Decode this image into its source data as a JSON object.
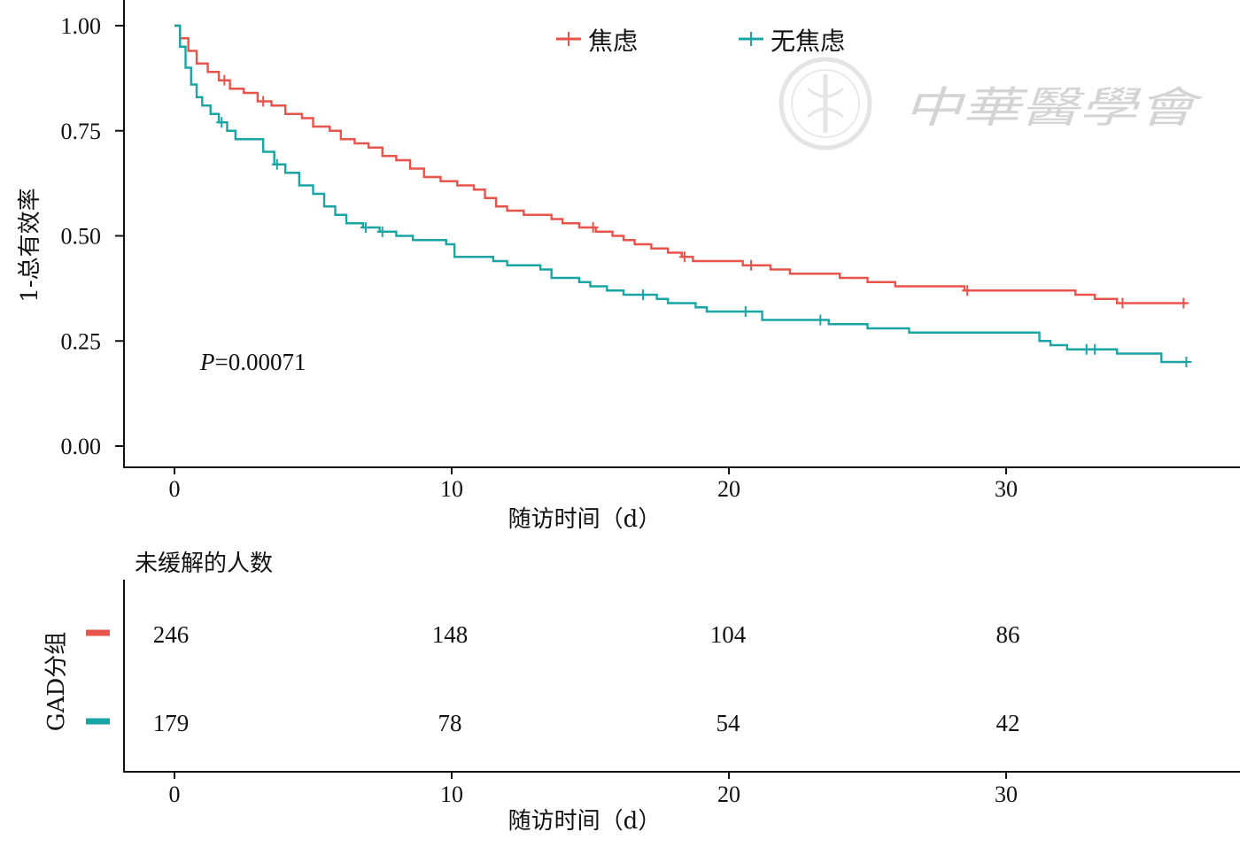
{
  "watermark": {
    "text": "中華醫學會"
  },
  "chart_data": [
    {
      "type": "line",
      "subtype": "kaplan-meier-step",
      "ylabel": "1-总有效率",
      "xlabel": "随访时间（d）",
      "xlim": [
        0,
        37
      ],
      "ylim": [
        0,
        1
      ],
      "x_ticks": [
        "0",
        "10",
        "20",
        "30"
      ],
      "y_ticks": [
        "0.00",
        "0.25",
        "0.50",
        "0.75",
        "1.00"
      ],
      "annotation": {
        "italic": "P",
        "rest": "=0.00071"
      },
      "legend": {
        "position": "top-center"
      },
      "series": [
        {
          "name": "焦虑",
          "color": "#e8534a",
          "points": [
            [
              0,
              1.0
            ],
            [
              0.2,
              0.97
            ],
            [
              0.5,
              0.94
            ],
            [
              0.8,
              0.91
            ],
            [
              1.2,
              0.89
            ],
            [
              1.6,
              0.87
            ],
            [
              2.0,
              0.85
            ],
            [
              2.5,
              0.84
            ],
            [
              3.0,
              0.82
            ],
            [
              3.5,
              0.81
            ],
            [
              4.0,
              0.79
            ],
            [
              4.6,
              0.78
            ],
            [
              5.0,
              0.76
            ],
            [
              5.6,
              0.75
            ],
            [
              6.0,
              0.73
            ],
            [
              6.5,
              0.72
            ],
            [
              7.0,
              0.71
            ],
            [
              7.5,
              0.69
            ],
            [
              8.0,
              0.68
            ],
            [
              8.5,
              0.66
            ],
            [
              9.0,
              0.64
            ],
            [
              9.6,
              0.63
            ],
            [
              10.2,
              0.62
            ],
            [
              10.8,
              0.61
            ],
            [
              11.2,
              0.59
            ],
            [
              11.6,
              0.57
            ],
            [
              12.0,
              0.56
            ],
            [
              12.6,
              0.55
            ],
            [
              13.2,
              0.55
            ],
            [
              13.6,
              0.54
            ],
            [
              14.0,
              0.53
            ],
            [
              14.6,
              0.52
            ],
            [
              15.2,
              0.51
            ],
            [
              15.8,
              0.5
            ],
            [
              16.2,
              0.49
            ],
            [
              16.6,
              0.48
            ],
            [
              17.2,
              0.47
            ],
            [
              17.8,
              0.46
            ],
            [
              18.3,
              0.45
            ],
            [
              18.7,
              0.44
            ],
            [
              19.2,
              0.44
            ],
            [
              20.0,
              0.44
            ],
            [
              20.5,
              0.43
            ],
            [
              21.0,
              0.43
            ],
            [
              21.5,
              0.42
            ],
            [
              22.2,
              0.41
            ],
            [
              23.0,
              0.41
            ],
            [
              24.0,
              0.4
            ],
            [
              25.0,
              0.39
            ],
            [
              26.0,
              0.38
            ],
            [
              27.0,
              0.38
            ],
            [
              28.5,
              0.37
            ],
            [
              30.0,
              0.37
            ],
            [
              31.5,
              0.37
            ],
            [
              32.5,
              0.36
            ],
            [
              33.2,
              0.35
            ],
            [
              34.0,
              0.34
            ],
            [
              35.5,
              0.34
            ],
            [
              36.5,
              0.34
            ]
          ],
          "censored_x": [
            1.8,
            3.2,
            15.1,
            18.4,
            20.8,
            28.6,
            34.2,
            36.4
          ]
        },
        {
          "name": "无焦虑",
          "color": "#1aa5a5",
          "points": [
            [
              0,
              1.0
            ],
            [
              0.2,
              0.95
            ],
            [
              0.4,
              0.9
            ],
            [
              0.6,
              0.86
            ],
            [
              0.8,
              0.83
            ],
            [
              1.0,
              0.81
            ],
            [
              1.3,
              0.79
            ],
            [
              1.6,
              0.77
            ],
            [
              1.9,
              0.75
            ],
            [
              2.2,
              0.73
            ],
            [
              2.8,
              0.73
            ],
            [
              3.2,
              0.7
            ],
            [
              3.6,
              0.67
            ],
            [
              4.0,
              0.65
            ],
            [
              4.5,
              0.62
            ],
            [
              5.0,
              0.6
            ],
            [
              5.4,
              0.57
            ],
            [
              5.8,
              0.55
            ],
            [
              6.2,
              0.53
            ],
            [
              6.8,
              0.52
            ],
            [
              7.4,
              0.51
            ],
            [
              8.0,
              0.5
            ],
            [
              8.6,
              0.49
            ],
            [
              9.4,
              0.49
            ],
            [
              9.8,
              0.48
            ],
            [
              10.1,
              0.45
            ],
            [
              11.0,
              0.45
            ],
            [
              11.5,
              0.44
            ],
            [
              12.0,
              0.43
            ],
            [
              12.8,
              0.43
            ],
            [
              13.2,
              0.42
            ],
            [
              13.6,
              0.4
            ],
            [
              14.6,
              0.39
            ],
            [
              15.0,
              0.38
            ],
            [
              15.6,
              0.37
            ],
            [
              16.2,
              0.36
            ],
            [
              17.0,
              0.36
            ],
            [
              17.4,
              0.35
            ],
            [
              17.8,
              0.34
            ],
            [
              18.8,
              0.33
            ],
            [
              19.2,
              0.32
            ],
            [
              20.8,
              0.32
            ],
            [
              21.2,
              0.3
            ],
            [
              22.6,
              0.3
            ],
            [
              23.6,
              0.29
            ],
            [
              25.0,
              0.28
            ],
            [
              26.5,
              0.27
            ],
            [
              28.5,
              0.27
            ],
            [
              29.7,
              0.27
            ],
            [
              30.8,
              0.27
            ],
            [
              31.2,
              0.25
            ],
            [
              31.6,
              0.24
            ],
            [
              32.2,
              0.23
            ],
            [
              33.5,
              0.23
            ],
            [
              34.0,
              0.22
            ],
            [
              35.2,
              0.22
            ],
            [
              35.6,
              0.2
            ],
            [
              36.5,
              0.2
            ]
          ],
          "censored_x": [
            1.7,
            3.7,
            6.9,
            7.5,
            16.9,
            20.6,
            23.3,
            32.9,
            33.2,
            36.5
          ]
        }
      ]
    },
    {
      "type": "table",
      "title": "未缓解的人数",
      "ylabel": "GAD分组",
      "xlabel": "随访时间（d）",
      "x_ticks": [
        "0",
        "10",
        "20",
        "30"
      ],
      "rows": [
        {
          "color": "#e8534a",
          "values": [
            "246",
            "148",
            "104",
            "86"
          ]
        },
        {
          "color": "#1aa5a5",
          "values": [
            "179",
            "78",
            "54",
            "42"
          ]
        }
      ]
    }
  ]
}
